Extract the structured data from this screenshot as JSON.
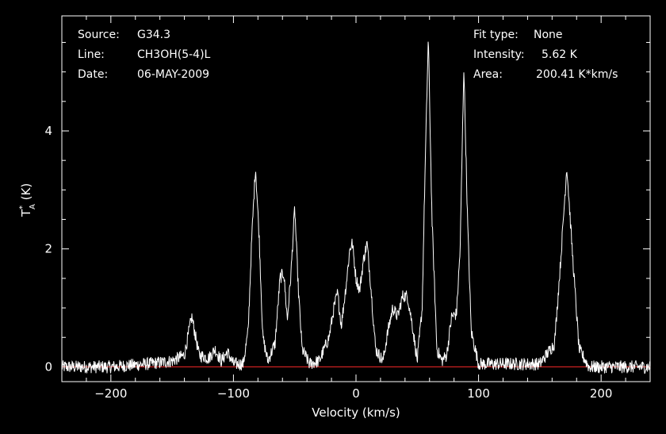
{
  "header": {
    "source_label": "Source:",
    "source_value": "G34.3",
    "line_label": "Line:",
    "line_value": "CH3OH(5-4)L",
    "date_label": "Date:",
    "date_value": "06-MAY-2009",
    "fit_label": "Fit type:",
    "fit_value": "None",
    "intensity_label": "Intensity:",
    "intensity_value": "5.62 K",
    "area_label": "Area:",
    "area_value": "200.41 K*km/s"
  },
  "chart_data": {
    "type": "line",
    "xlabel": "Velocity (km/s)",
    "ylabel": "T*A (K)",
    "xlim": [
      -240,
      240
    ],
    "ylim": [
      -0.25,
      5.95
    ],
    "x_ticks": [
      -200,
      -100,
      0,
      100,
      200
    ],
    "x_tick_labels": [
      "−200",
      "−100",
      "0",
      "100",
      "200"
    ],
    "y_ticks": [
      0,
      2,
      4
    ],
    "y_tick_labels": [
      "0",
      "2",
      "4"
    ],
    "baseline": 0,
    "colors": {
      "spectrum": "#ffffff",
      "baseline": "#cc2222",
      "axes": "#ffffff"
    },
    "grid": false,
    "series": [
      {
        "x": [
          -240,
          -200,
          -170,
          -150,
          -140,
          -134,
          -128,
          -120,
          -115,
          -110,
          -105,
          -100,
          -92,
          -88,
          -85,
          -82,
          -79,
          -76,
          -72,
          -66,
          -62,
          -59,
          -56,
          -53,
          -50,
          -47,
          -44,
          -38,
          -30,
          -22,
          -18,
          -15,
          -12,
          -8,
          -5,
          -3,
          0,
          3,
          6,
          9,
          12,
          16,
          22,
          26,
          30,
          34,
          38,
          42,
          46,
          50,
          54,
          56,
          59,
          62,
          66,
          70,
          74,
          78,
          82,
          85,
          88,
          91,
          94,
          100,
          120,
          150,
          162,
          167,
          172,
          177,
          182,
          190,
          240
        ],
        "y": [
          0,
          0,
          0.05,
          0.1,
          0.2,
          0.85,
          0.2,
          0.15,
          0.3,
          0.1,
          0.25,
          0.05,
          0.05,
          0.6,
          2.2,
          3.4,
          2.2,
          0.5,
          0.1,
          0.4,
          1.5,
          1.6,
          0.8,
          1.6,
          2.7,
          1.3,
          0.3,
          0.05,
          0.1,
          0.5,
          1.0,
          1.25,
          0.7,
          1.4,
          2.0,
          2.1,
          1.5,
          1.3,
          1.8,
          2.1,
          1.4,
          0.3,
          0.1,
          0.6,
          1.0,
          0.85,
          1.2,
          1.2,
          0.7,
          0.1,
          1.0,
          3.0,
          5.6,
          2.5,
          0.3,
          0.1,
          0.2,
          0.85,
          0.9,
          2.0,
          5.1,
          2.5,
          0.6,
          0.05,
          0.05,
          0.05,
          0.4,
          1.8,
          3.4,
          1.8,
          0.3,
          0.0,
          0
        ]
      }
    ]
  }
}
